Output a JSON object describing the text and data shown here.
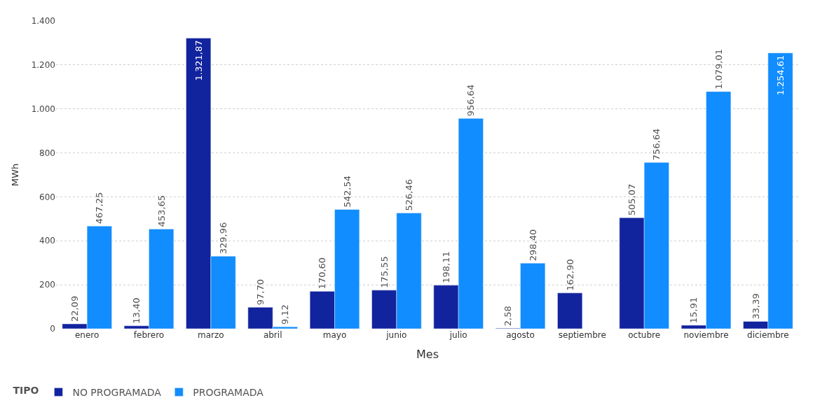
{
  "chart_data": {
    "type": "bar",
    "xlabel": "Mes",
    "ylabel": "MWh",
    "legend_title": "TIPO",
    "legend": "bottom left",
    "grid": "y",
    "categories": [
      "enero",
      "febrero",
      "marzo",
      "abril",
      "mayo",
      "junio",
      "julio",
      "agosto",
      "septiembre",
      "octubre",
      "noviembre",
      "diciembre"
    ],
    "ylim": [
      0,
      1400
    ],
    "yticks": [
      0,
      200,
      400,
      600,
      800,
      {
        "value": 1000,
        "label": "1.000"
      },
      {
        "value": 1200,
        "label": "1.200"
      },
      {
        "value": 1400,
        "label": "1.400"
      }
    ],
    "series": [
      {
        "name": "NO PROGRAMADA",
        "color": "#12239e",
        "values": [
          22.09,
          13.4,
          1321.87,
          97.7,
          170.6,
          175.55,
          198.11,
          2.58,
          162.9,
          505.07,
          15.91,
          33.39
        ],
        "value_labels": [
          "22,09",
          "13,40",
          "1.321,87",
          "97,70",
          "170,60",
          "175,55",
          "198,11",
          "2,58",
          "162,90",
          "505,07",
          "15,91",
          "33,39"
        ]
      },
      {
        "name": "PROGRAMADA",
        "color": "#118dff",
        "values": [
          467.25,
          453.65,
          329.96,
          9.12,
          542.54,
          526.46,
          956.64,
          298.4,
          null,
          756.64,
          1079.01,
          1254.61
        ],
        "value_labels": [
          "467,25",
          "453,65",
          "329,96",
          "9,12",
          "542,54",
          "526,46",
          "956,64",
          "298,40",
          null,
          "756,64",
          "1.079,01",
          "1.254,61"
        ]
      }
    ]
  }
}
